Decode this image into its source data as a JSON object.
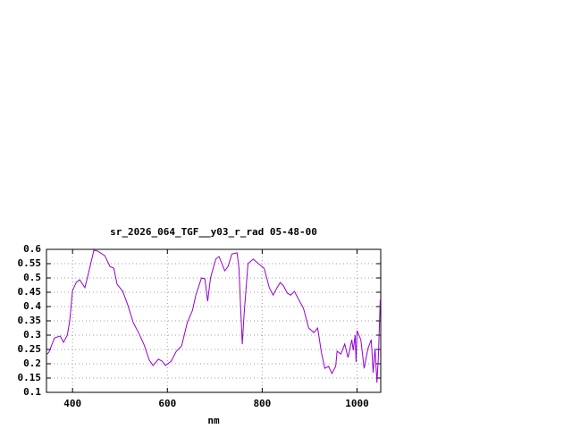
{
  "chart_data": {
    "type": "line",
    "title": "sr_2026_064_TGF__y03_r_rad 05-48-00",
    "x_label": "nm",
    "x": [
      343,
      350,
      362,
      374,
      381,
      389,
      394,
      400,
      408,
      415,
      426,
      434,
      445,
      453,
      468,
      479,
      487,
      494,
      506,
      517,
      528,
      540,
      551,
      562,
      570,
      581,
      589,
      596,
      608,
      619,
      630,
      642,
      653,
      660,
      672,
      679,
      685,
      691,
      702,
      709,
      721,
      728,
      736,
      747,
      751,
      755,
      758,
      762,
      770,
      781,
      792,
      804,
      815,
      823,
      830,
      838,
      845,
      853,
      860,
      868,
      875,
      887,
      898,
      909,
      917,
      925,
      932,
      940,
      947,
      955,
      958,
      966,
      974,
      981,
      989,
      992,
      996,
      998,
      1000,
      1008,
      1015,
      1023,
      1030,
      1034,
      1038,
      1042,
      1045,
      1049
    ],
    "series": [
      {
        "color": "#9400d3",
        "values": [
          0.228,
          0.24,
          0.29,
          0.297,
          0.275,
          0.3,
          0.35,
          0.456,
          0.485,
          0.494,
          0.466,
          0.519,
          0.597,
          0.594,
          0.578,
          0.54,
          0.534,
          0.478,
          0.453,
          0.403,
          0.344,
          0.306,
          0.266,
          0.212,
          0.194,
          0.216,
          0.209,
          0.194,
          0.209,
          0.244,
          0.262,
          0.344,
          0.387,
          0.44,
          0.5,
          0.497,
          0.419,
          0.5,
          0.566,
          0.575,
          0.525,
          0.54,
          0.584,
          0.588,
          0.534,
          0.378,
          0.269,
          0.378,
          0.55,
          0.566,
          0.55,
          0.534,
          0.466,
          0.44,
          0.462,
          0.484,
          0.472,
          0.447,
          0.44,
          0.453,
          0.431,
          0.394,
          0.325,
          0.309,
          0.325,
          0.238,
          0.184,
          0.191,
          0.166,
          0.191,
          0.244,
          0.234,
          0.269,
          0.222,
          0.284,
          0.247,
          0.3,
          0.206,
          0.316,
          0.284,
          0.184,
          0.253,
          0.284,
          0.169,
          0.253,
          0.134,
          0.222,
          0.425
        ]
      }
    ],
    "xlim": [
      345,
      1050
    ],
    "xticks": [
      400,
      600,
      800,
      1000
    ],
    "ylim": [
      0.1,
      0.6
    ],
    "yticks": [
      0.1,
      0.15,
      0.2,
      0.25,
      0.3,
      0.35,
      0.4,
      0.45,
      0.5,
      0.55,
      0.6
    ],
    "grid": true
  }
}
